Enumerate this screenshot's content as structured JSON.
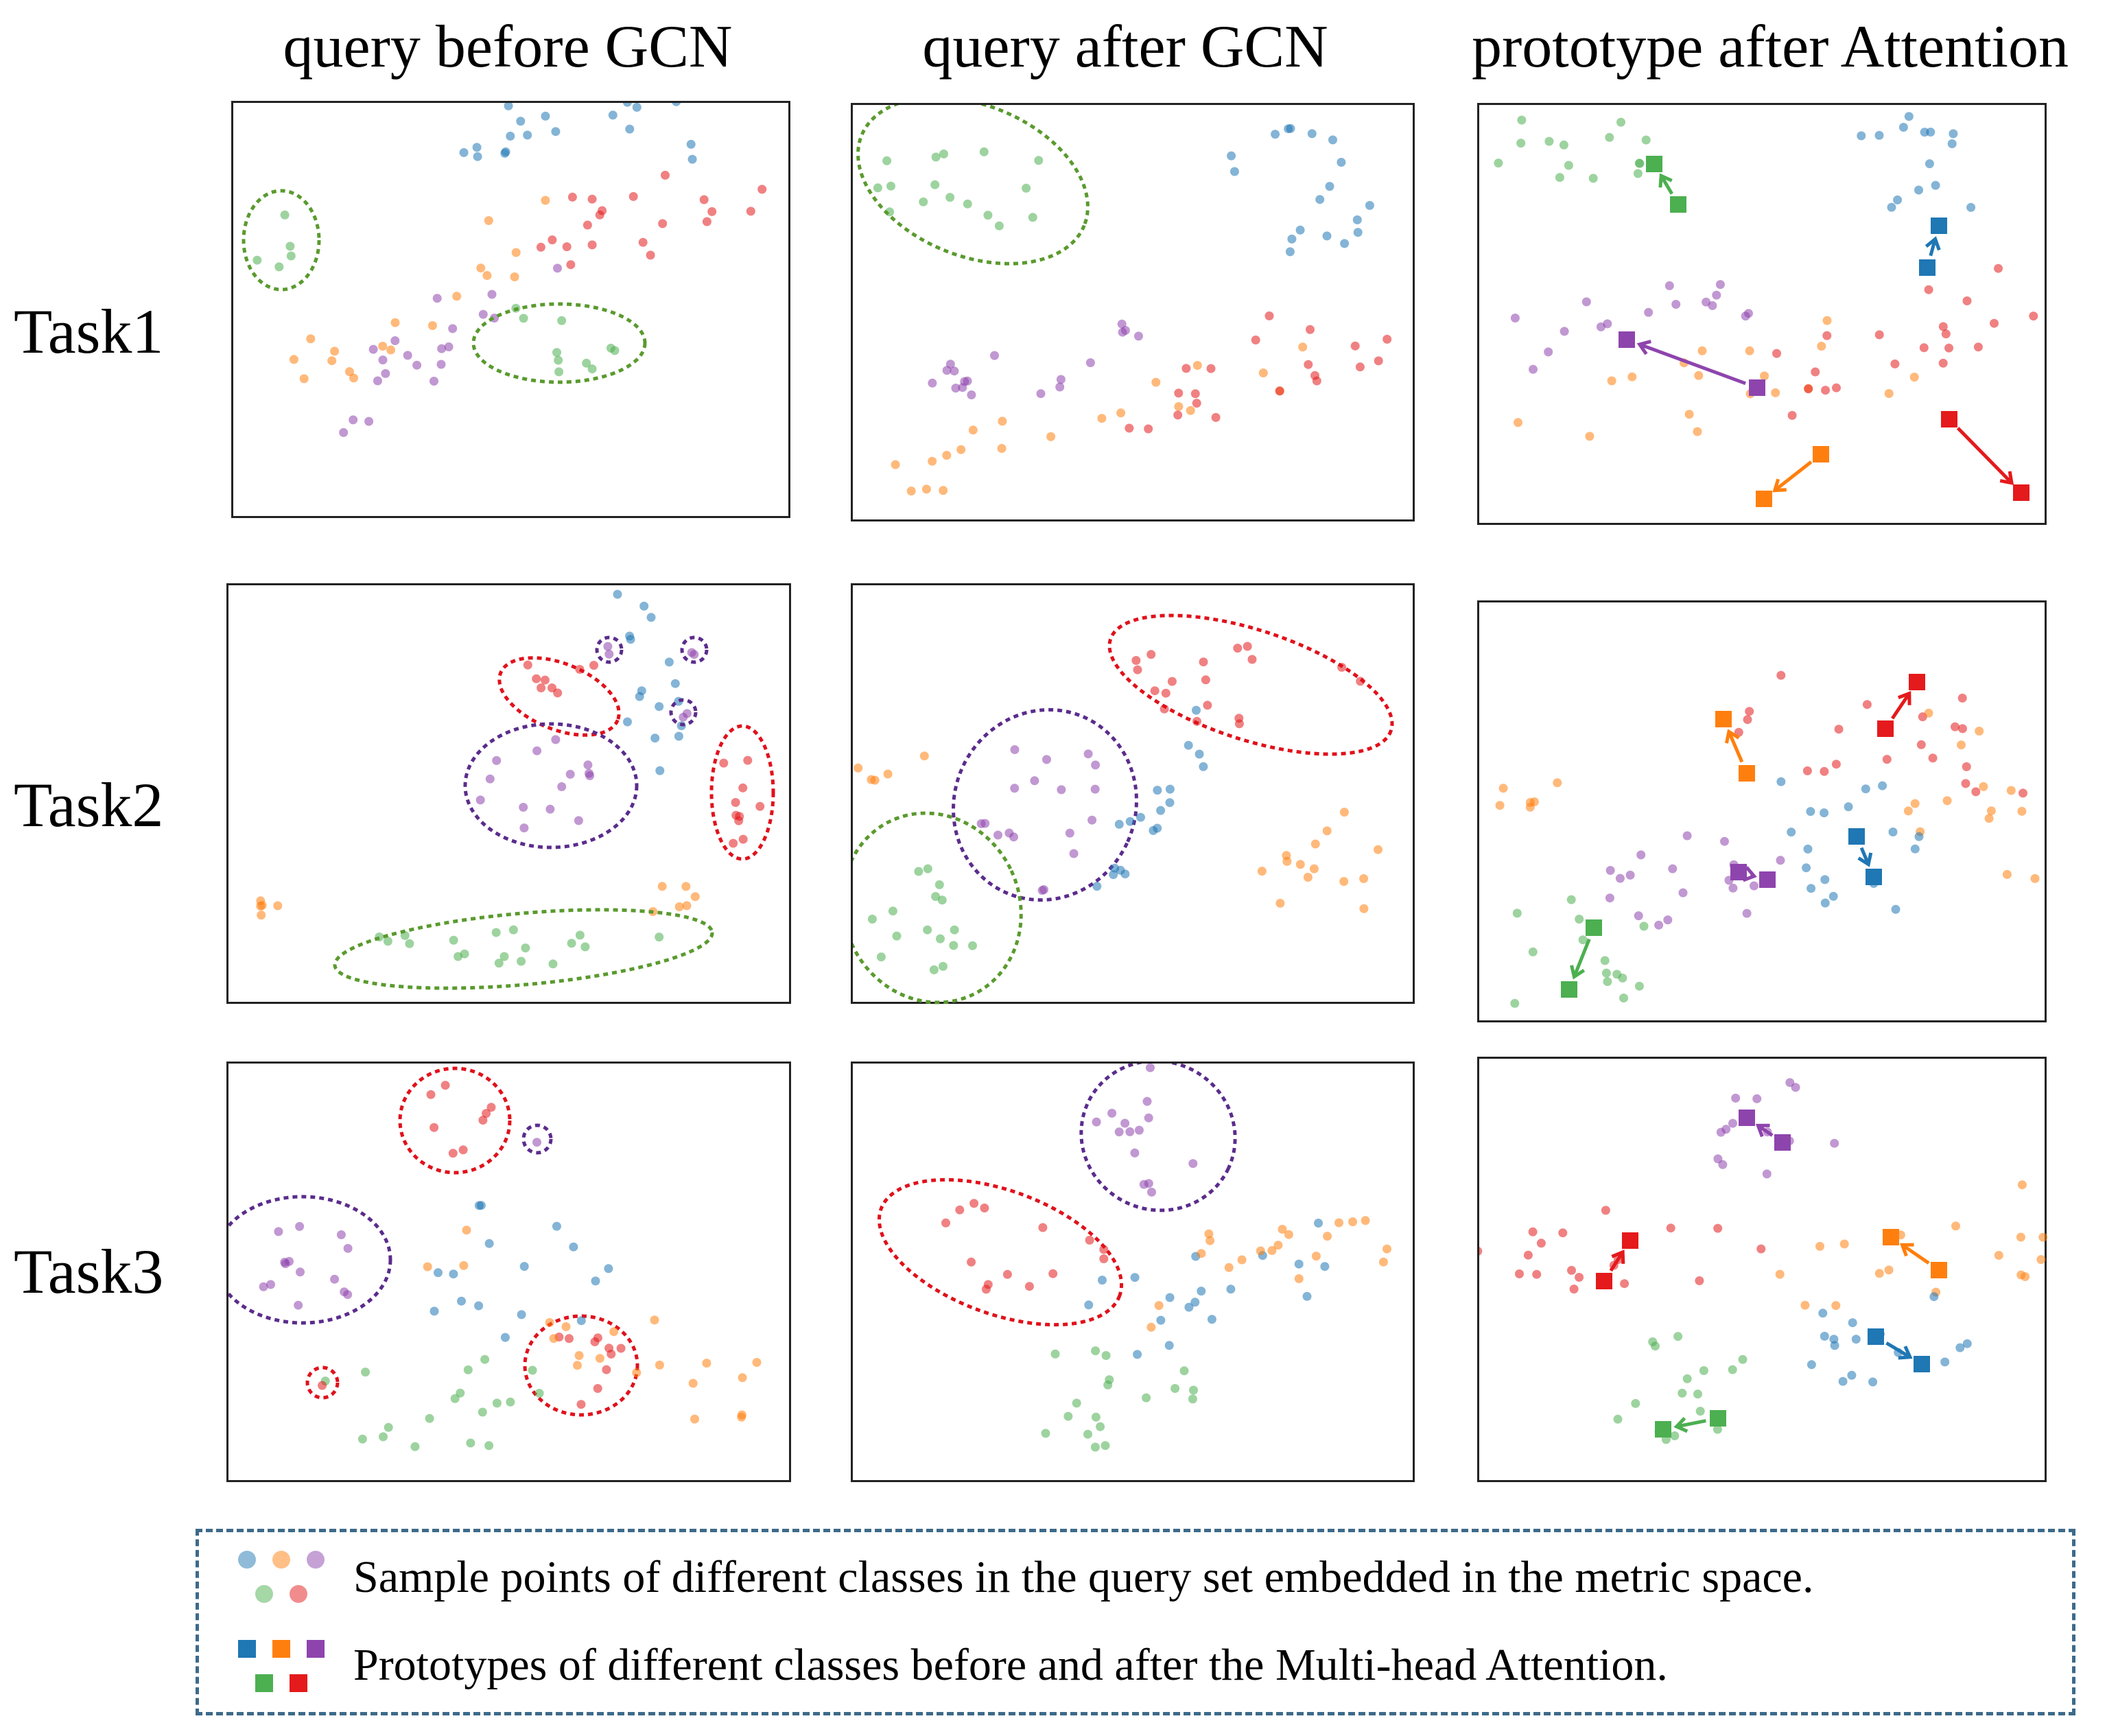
{
  "column_titles": [
    "query before GCN",
    "query after GCN",
    "prototype after Attention"
  ],
  "row_labels": [
    "Task1",
    "Task2",
    "Task3"
  ],
  "colors": {
    "blue": "#1f77b4",
    "orange": "#ff7f0e",
    "purple": "#8e44ad",
    "green": "#4caf50",
    "red": "#e41a1c",
    "ellipse_green": "#5a9a2e",
    "ellipse_purple": "#5b2c8c",
    "ellipse_red": "#e0111b",
    "legend_border": "#3d6a8a"
  },
  "legend": {
    "sample_points_text": "Sample points of different classes in the query set embedded in the metric space.",
    "prototypes_text": "Prototypes of different classes before and after the Multi-head Attention."
  }
}
